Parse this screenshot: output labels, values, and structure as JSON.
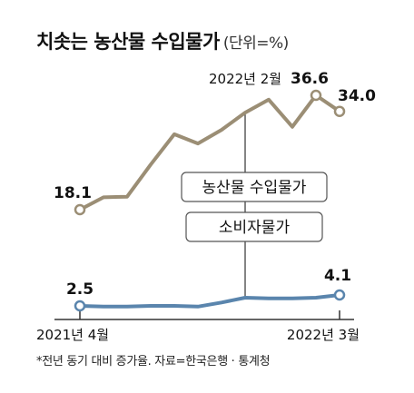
{
  "title": "치솟는 농산물 수입물가",
  "unit": "(단위=%)",
  "note": "*전년 동기 대비 증가율. 자료=한국은행 · 통계청",
  "colors": {
    "import": "#9b8e75",
    "consumer": "#5a85ad",
    "axis": "#333333"
  },
  "chart_data": {
    "type": "line",
    "x_start_label": "2021년 4월",
    "x_end_label": "2022년 3월",
    "peak_label": "2022년 2월",
    "series": [
      {
        "name": "농산물 수입물가",
        "values": [
          18.1,
          20.1,
          20.2,
          25.4,
          30.3,
          28.8,
          31.0,
          33.8,
          35.9,
          31.5,
          36.6,
          34.0
        ],
        "labels": {
          "first": "18.1",
          "peak": "36.6",
          "last": "34.0"
        }
      },
      {
        "name": "소비자물가",
        "values": [
          2.5,
          2.4,
          2.4,
          2.5,
          2.5,
          2.4,
          3.0,
          3.7,
          3.6,
          3.6,
          3.7,
          4.1
        ],
        "labels": {
          "first": "2.5",
          "last": "4.1"
        }
      }
    ]
  }
}
